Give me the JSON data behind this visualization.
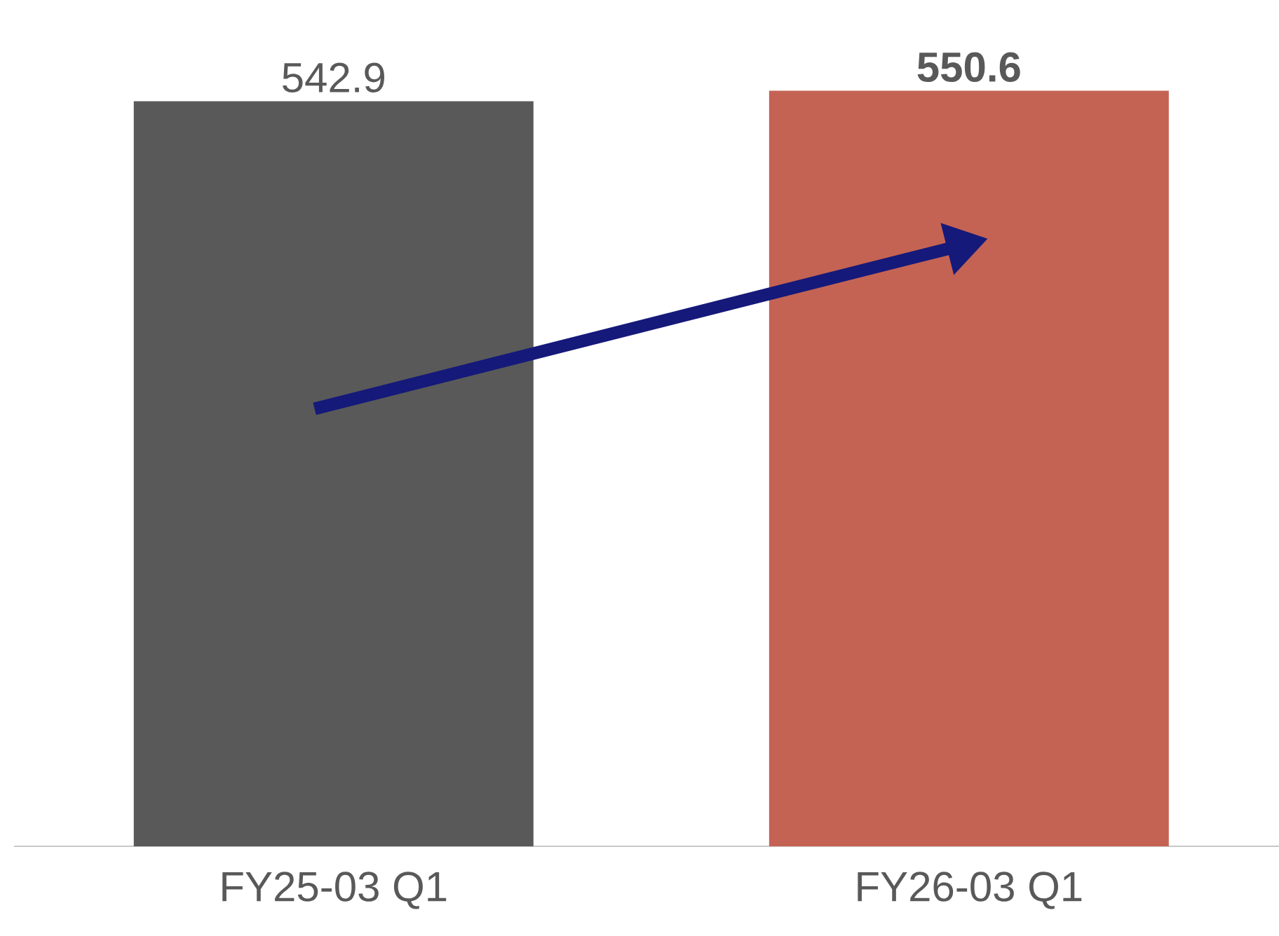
{
  "chart_data": {
    "type": "bar",
    "categories": [
      "FY25-03 Q1",
      "FY26-03 Q1"
    ],
    "values": [
      542.9,
      550.6
    ],
    "colors": [
      "#595959",
      "#c46354"
    ],
    "value_labels": [
      "542.9",
      "**550.6**"
    ]
  }
}
